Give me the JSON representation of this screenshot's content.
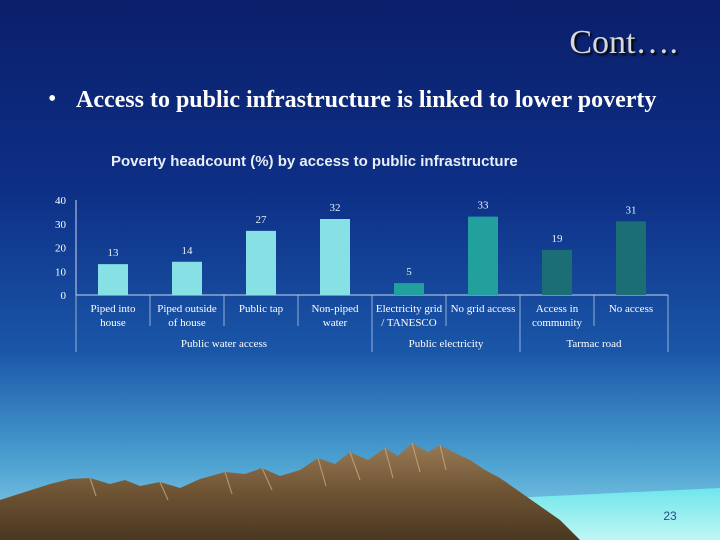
{
  "slide": {
    "title": "Cont….",
    "bullet_symbol": "•",
    "bullet_text": "Access to public infrastructure is linked to lower poverty",
    "page_number": "23"
  },
  "chart_data": {
    "type": "bar",
    "title": "Poverty headcount (%) by access to public infrastructure",
    "xlabel": "",
    "ylabel": "",
    "ylim": [
      0,
      40
    ],
    "yticks": [
      0,
      10,
      20,
      30,
      40
    ],
    "grid": false,
    "categories": [
      [
        "Piped into",
        "house"
      ],
      [
        "Piped outside",
        "of house"
      ],
      [
        "Public tap"
      ],
      [
        "Non-piped",
        "water"
      ],
      [
        "Electricity grid",
        "/ TANESCO"
      ],
      [
        "No grid access"
      ],
      [
        "Access in",
        "community"
      ],
      [
        "No access"
      ]
    ],
    "values": [
      13,
      14,
      27,
      32,
      5,
      33,
      19,
      31
    ],
    "bar_colors": [
      "#86e0e4",
      "#86e0e4",
      "#86e0e4",
      "#86e0e4",
      "#22a09e",
      "#22a09e",
      "#1b6f74",
      "#1b6f74"
    ],
    "groups": [
      {
        "label": "Public water access",
        "start": 0,
        "end": 3
      },
      {
        "label": "Public electricity",
        "start": 4,
        "end": 5
      },
      {
        "label": "Tarmac road",
        "start": 6,
        "end": 7
      }
    ]
  }
}
